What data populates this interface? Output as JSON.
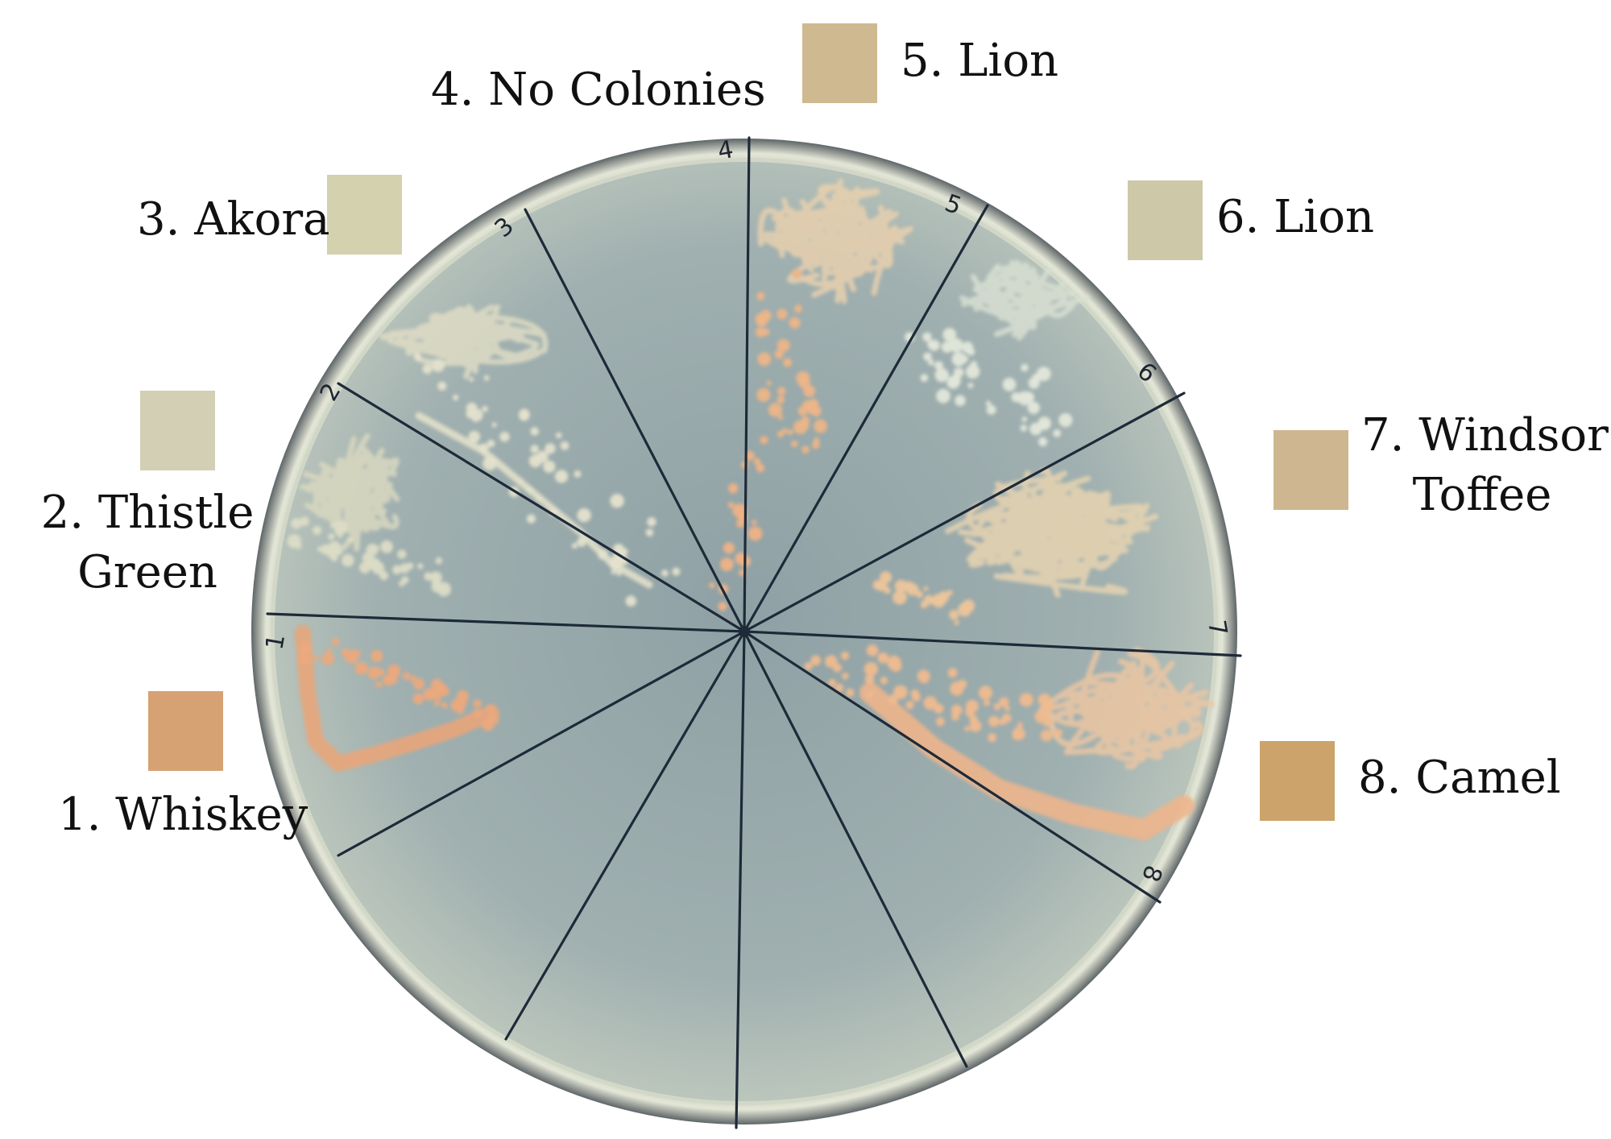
{
  "labels": [
    {
      "number": "1.",
      "lines": [
        "Whiskey"
      ],
      "text": "1. Whiskey",
      "color": "#D6A274"
    },
    {
      "number": "2.",
      "lines": [
        "Thistle",
        "Green"
      ],
      "text": "2. Thistle Green",
      "color": "#D3CFB4"
    },
    {
      "number": "3.",
      "lines": [
        "Akora"
      ],
      "text": "3. Akora",
      "color": "#D4D1AF"
    },
    {
      "number": "4.",
      "lines": [
        "No Colonies"
      ],
      "text": "4. No Colonies",
      "color": null
    },
    {
      "number": "5.",
      "lines": [
        "Lion"
      ],
      "text": "5. Lion",
      "color": "#CFB990"
    },
    {
      "number": "6.",
      "lines": [
        "Lion"
      ],
      "text": "6. Lion",
      "color": "#CDC8A8"
    },
    {
      "number": "7.",
      "lines": [
        "Windsor",
        "Toffee"
      ],
      "text": "7. Windsor Toffee",
      "color": "#CEB790"
    },
    {
      "number": "8.",
      "lines": [
        "Camel"
      ],
      "text": "8. Camel",
      "color": "#CCA36A"
    }
  ],
  "plate": {
    "handwritten_sector_marks": [
      "1",
      "2",
      "3",
      "4",
      "5",
      "6",
      "7",
      "8"
    ],
    "agar_color": "#9FAFAF",
    "marker_line_color": "#1E2A38"
  }
}
